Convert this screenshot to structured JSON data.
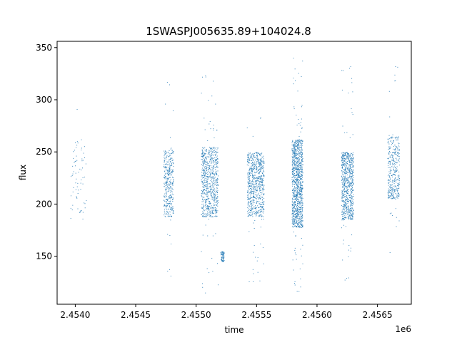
{
  "chart_data": {
    "type": "scatter",
    "title": "1SWASPJ005635.89+104024.8",
    "xlabel": "time",
    "ylabel": "flux",
    "x_offset_label": "1e6",
    "x_scale": 1000000,
    "xlim": [
      2.45385,
      2.45678
    ],
    "ylim": [
      104,
      356
    ],
    "xticks": [
      2.454,
      2.4545,
      2.455,
      2.4555,
      2.456,
      2.4565
    ],
    "xtick_labels": [
      "2.4540",
      "2.4545",
      "2.4550",
      "2.4555",
      "2.4560",
      "2.4565"
    ],
    "yticks": [
      150,
      200,
      250,
      300,
      350
    ],
    "ytick_labels": [
      "150",
      "200",
      "250",
      "300",
      "350"
    ],
    "grid": false,
    "marker_color": "#1f77b4",
    "observing_seasons": [
      {
        "time_start": 2453960,
        "time_end": 2454090,
        "flux_core": [
          185,
          262
        ],
        "flux_extremes": [
          155,
          292
        ],
        "density": "sparse"
      },
      {
        "time_start": 2454730,
        "time_end": 2454810,
        "flux_core": [
          188,
          252
        ],
        "flux_extremes": [
          128,
          320
        ],
        "density": "medium"
      },
      {
        "time_start": 2455040,
        "time_end": 2455180,
        "flux_core": [
          188,
          255
        ],
        "flux_extremes": [
          115,
          325
        ],
        "density": "dense"
      },
      {
        "time_start": 2455200,
        "time_end": 2455230,
        "flux_core": [
          145,
          155
        ],
        "flux_extremes": [
          145,
          155
        ],
        "density": "sparse"
      },
      {
        "time_start": 2455420,
        "time_end": 2455560,
        "flux_core": [
          188,
          250
        ],
        "flux_extremes": [
          120,
          283
        ],
        "density": "dense"
      },
      {
        "time_start": 2455790,
        "time_end": 2455880,
        "flux_core": [
          178,
          262
        ],
        "flux_extremes": [
          115,
          342
        ],
        "density": "very dense"
      },
      {
        "time_start": 2456200,
        "time_end": 2456300,
        "flux_core": [
          185,
          250
        ],
        "flux_extremes": [
          118,
          337
        ],
        "density": "dense"
      },
      {
        "time_start": 2456580,
        "time_end": 2456680,
        "flux_core": [
          205,
          265
        ],
        "flux_extremes": [
          148,
          342
        ],
        "density": "medium"
      }
    ]
  }
}
